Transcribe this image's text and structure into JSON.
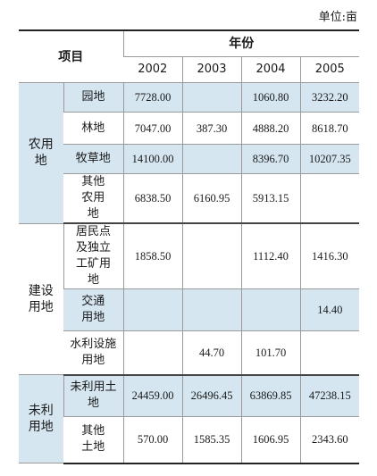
{
  "unit_label": "单位:亩",
  "header": {
    "item": "项目",
    "year_group": "年份",
    "years": [
      "2002",
      "2003",
      "2004",
      "2005"
    ]
  },
  "groups": [
    {
      "name": "农用地",
      "rows": [
        {
          "item": "园地",
          "values": [
            "7728.00",
            "",
            "1060.80",
            "3232.20"
          ]
        },
        {
          "item": "林地",
          "values": [
            "7047.00",
            "387.30",
            "4888.20",
            "8618.70"
          ]
        },
        {
          "item": "牧草地",
          "values": [
            "14100.00",
            "",
            "8396.70",
            "10207.35"
          ]
        },
        {
          "item": "其他农用地",
          "values": [
            "6838.50",
            "6160.95",
            "5913.15",
            ""
          ]
        }
      ]
    },
    {
      "name": "建设用地",
      "rows": [
        {
          "item": "居民点及独立工矿用地",
          "values": [
            "1858.50",
            "",
            "1112.40",
            "1416.30"
          ]
        },
        {
          "item": "交通用地",
          "values": [
            "",
            "",
            "",
            "14.40"
          ]
        },
        {
          "item": "水利设施用地",
          "values": [
            "",
            "44.70",
            "101.70",
            ""
          ]
        }
      ]
    },
    {
      "name": "未利用地",
      "rows": [
        {
          "item": "未利用土地",
          "values": [
            "24459.00",
            "26496.45",
            "63869.85",
            "47238.15"
          ]
        },
        {
          "item": "其他土地",
          "values": [
            "570.00",
            "1585.35",
            "1606.95",
            "2343.60"
          ]
        }
      ]
    }
  ]
}
